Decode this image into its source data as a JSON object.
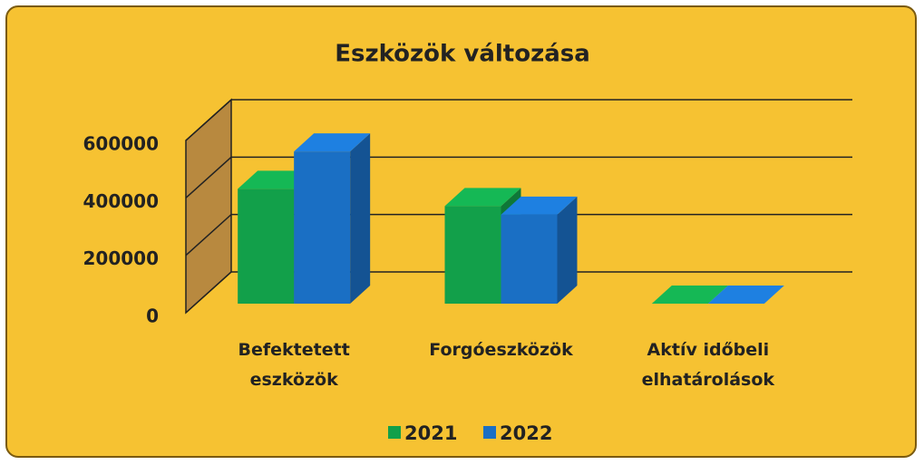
{
  "chart_data": {
    "type": "bar3d",
    "title": "Eszközök változása",
    "categories": [
      "Befektetett eszközök",
      "Forgóeszközök",
      "Aktív időbeli elhatárolások"
    ],
    "series": [
      {
        "name": "2021",
        "color": "#12a04a",
        "values": [
          400000,
          340000,
          0
        ]
      },
      {
        "name": "2022",
        "color": "#1a6fc4",
        "values": [
          530000,
          310000,
          0
        ]
      }
    ],
    "ylim": [
      0,
      600000
    ],
    "yticks": [
      0,
      200000,
      400000,
      600000
    ],
    "grid": true,
    "legend": "bottom"
  }
}
